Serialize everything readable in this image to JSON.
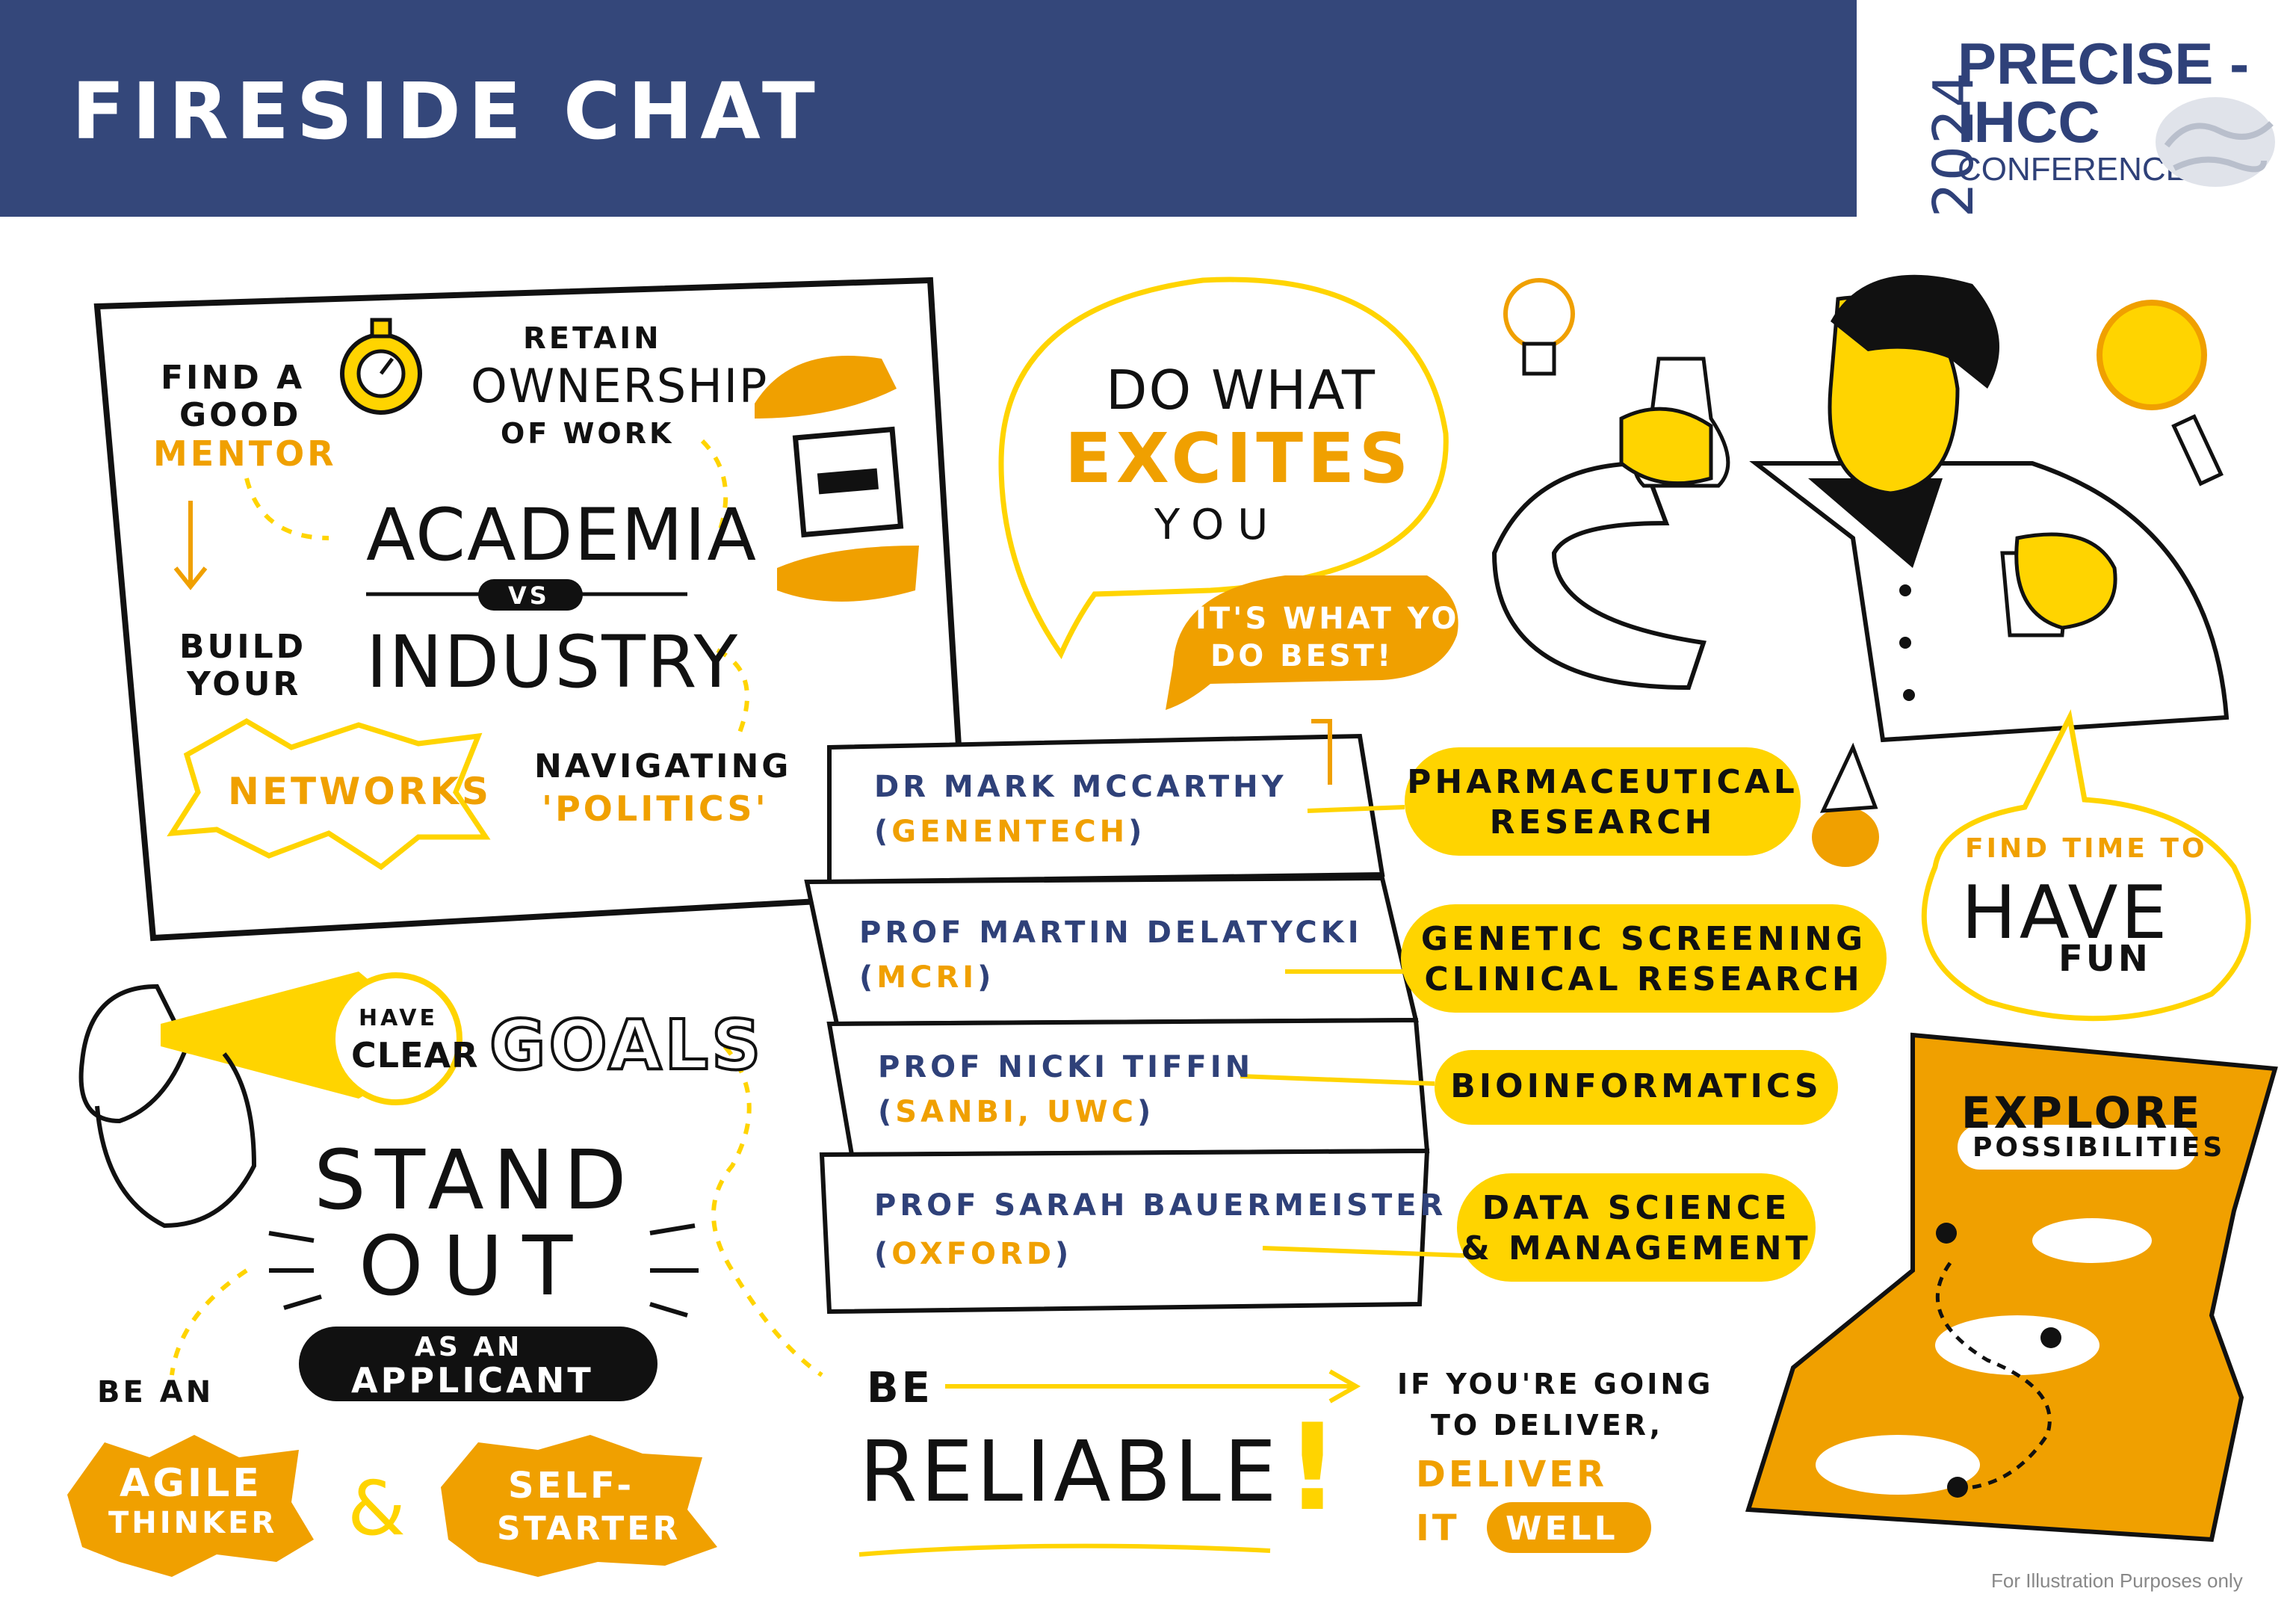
{
  "header": {
    "title": "FIRESIDE CHAT"
  },
  "logo": {
    "year": "2024",
    "line1": "PRECISE -",
    "line2": "IHCC",
    "line3": "CONFERENCE"
  },
  "board": {
    "find_mentor_1": "FIND A",
    "find_mentor_2": "GOOD",
    "find_mentor_3": "MENTOR",
    "retain_1": "RETAIN",
    "retain_2": "OWNERSHIP",
    "retain_3": "OF WORK",
    "academia": "ACADEMIA",
    "vs": "VS",
    "industry": "INDUSTRY",
    "build_1": "BUILD",
    "build_2": "YOUR",
    "networks": "NETWORKS",
    "navigating_1": "NAVIGATING",
    "navigating_2": "'POLITICS'"
  },
  "excites": {
    "line1": "DO WHAT",
    "line2": "EXCITES",
    "line3": "YOU",
    "best_1": "IT'S WHAT YOU",
    "best_2": "DO BEST!"
  },
  "speakers": [
    {
      "name": "DR MARK MCCARTHY",
      "org": "GENENTECH",
      "topic_1": "PHARMACEUTICAL",
      "topic_2": "RESEARCH"
    },
    {
      "name": "PROF MARTIN DELATYCKI",
      "org": "MCRI",
      "topic_1": "GENETIC SCREENING",
      "topic_2": "CLINICAL RESEARCH"
    },
    {
      "name": "PROF NICKI TIFFIN",
      "org": "SANBI, UWC",
      "topic_1": "BIOINFORMATICS",
      "topic_2": ""
    },
    {
      "name": "PROF SARAH BAUERMEISTER",
      "org": "OXFORD",
      "topic_1": "DATA SCIENCE",
      "topic_2": "& MANAGEMENT"
    }
  ],
  "fun": {
    "line1": "FIND TIME TO",
    "line2": "HAVE",
    "line3": "FUN"
  },
  "goals": {
    "have": "HAVE",
    "clear": "CLEAR",
    "goals": "GOALS"
  },
  "stand_out": {
    "line1": "STAND",
    "line2": "OUT",
    "as_an": "AS AN",
    "applicant": "APPLICANT"
  },
  "agile": {
    "be_an": "BE AN",
    "agile": "AGILE",
    "thinker": "THINKER",
    "amp": "&",
    "self": "SELF-",
    "starter": "STARTER"
  },
  "reliable": {
    "be": "BE",
    "reliable": "RELIABLE",
    "bang": "!",
    "deliver_1": "IF YOU'RE GOING",
    "deliver_2": "TO DELIVER,",
    "deliver_3": "DELIVER",
    "deliver_4": "IT",
    "deliver_5": "WELL"
  },
  "explore": {
    "line1": "EXPLORE",
    "line2": "POSSIBILITIES"
  },
  "footnote": "For Illustration Purposes only",
  "colors": {
    "navy": "#34477a",
    "yellow": "#ffd400",
    "orange": "#f0a000",
    "ink": "#111111"
  }
}
